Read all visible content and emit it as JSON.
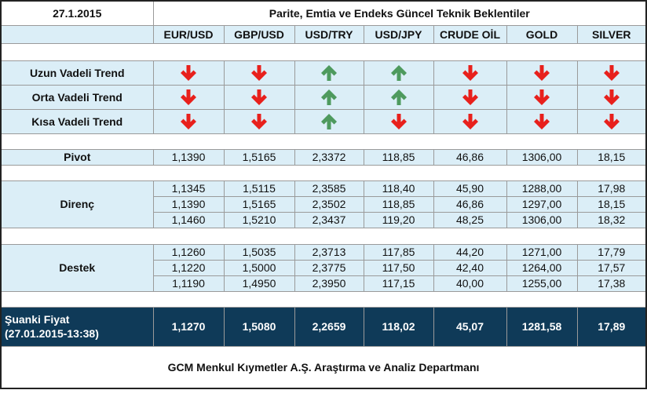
{
  "header": {
    "date": "27.1.2015",
    "title": "Parite, Emtia ve Endeks Güncel Teknik Beklentiler"
  },
  "columns": [
    "EUR/USD",
    "GBP/USD",
    "USD/TRY",
    "USD/JPY",
    "CRUDE OİL",
    "GOLD",
    "SILVER"
  ],
  "trend_rows": [
    "Uzun Vadeli Trend",
    "Orta Vadeli Trend",
    "Kısa Vadeli Trend"
  ],
  "pivot": {
    "label": "Pivot",
    "values": [
      "1,1390",
      "1,5165",
      "2,3372",
      "118,85",
      "46,86",
      "1306,00",
      "18,15"
    ]
  },
  "resistance": {
    "label": "Direnç",
    "rows": [
      [
        "1,1345",
        "1,5115",
        "2,3585",
        "118,40",
        "45,90",
        "1288,00",
        "17,98"
      ],
      [
        "1,1390",
        "1,5165",
        "2,3502",
        "118,85",
        "46,86",
        "1297,00",
        "18,15"
      ],
      [
        "1,1460",
        "1,5210",
        "2,3437",
        "119,20",
        "48,25",
        "1306,00",
        "18,32"
      ]
    ]
  },
  "support": {
    "label": "Destek",
    "rows": [
      [
        "1,1260",
        "1,5035",
        "2,3713",
        "117,85",
        "44,20",
        "1271,00",
        "17,79"
      ],
      [
        "1,1220",
        "1,5000",
        "2,3775",
        "117,50",
        "42,40",
        "1264,00",
        "17,57"
      ],
      [
        "1,1190",
        "1,4950",
        "2,3950",
        "117,15",
        "40,00",
        "1255,00",
        "17,38"
      ]
    ]
  },
  "current_price": {
    "label": "Şuanki Fiyat",
    "timestamp": "(27.01.2015-13:38)",
    "values": [
      "1,1270",
      "1,5080",
      "2,2659",
      "118,02",
      "45,07",
      "1281,58",
      "17,89"
    ]
  },
  "footer": "GCM Menkul Kıymetler A.Ş. Araştırma ve Analiz Departmanı"
}
